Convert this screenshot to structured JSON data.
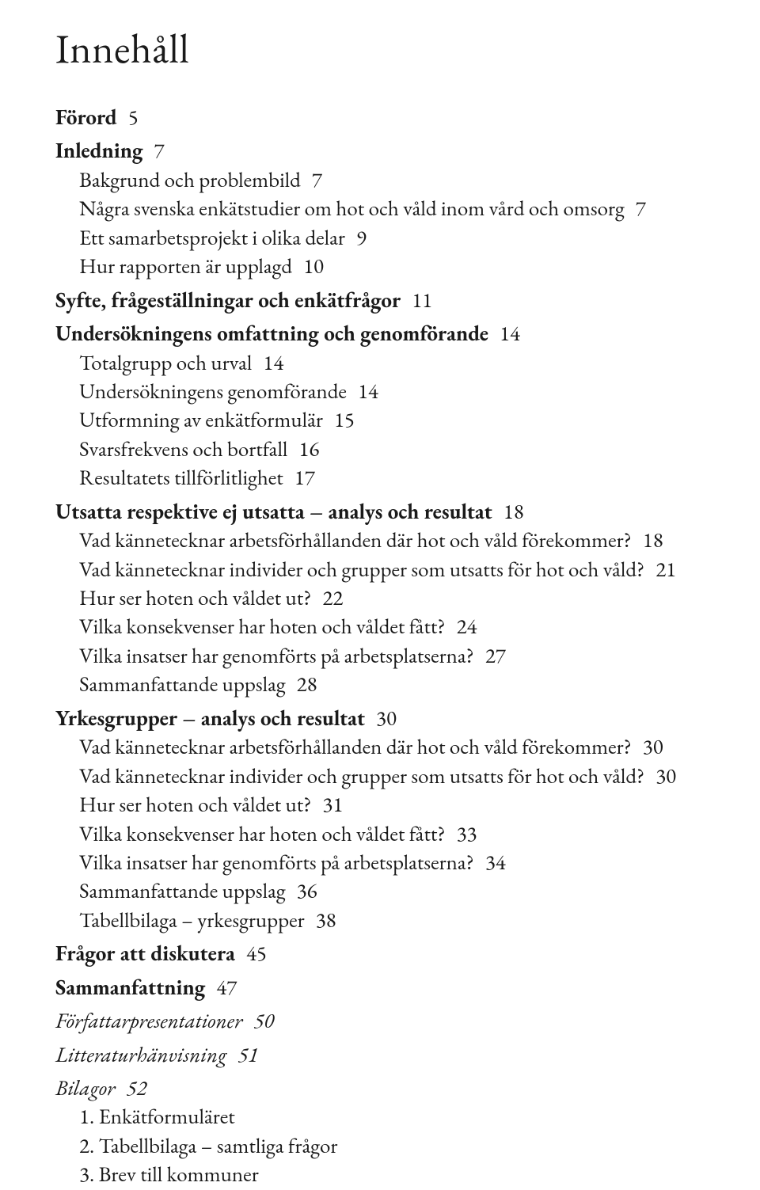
{
  "title": "Innehåll",
  "blocks": [
    {
      "type": "section",
      "text": "Förord",
      "page": "5"
    },
    {
      "type": "section",
      "text": "Inledning",
      "page": "7"
    },
    {
      "type": "sub",
      "text": "Bakgrund och problembild",
      "page": "7"
    },
    {
      "type": "sub",
      "text": "Några svenska enkätstudier om hot och våld inom vård och omsorg",
      "page": "7"
    },
    {
      "type": "sub",
      "text": "Ett samarbetsprojekt i olika delar",
      "page": "9"
    },
    {
      "type": "sub",
      "text": "Hur rapporten är upplagd",
      "page": "10"
    },
    {
      "type": "section",
      "text": "Syfte, frågeställningar och enkätfrågor",
      "page": "11"
    },
    {
      "type": "section",
      "text": "Undersökningens omfattning och genomförande",
      "page": "14"
    },
    {
      "type": "sub",
      "text": "Totalgrupp och urval",
      "page": "14"
    },
    {
      "type": "sub",
      "text": "Undersökningens genomförande",
      "page": "14"
    },
    {
      "type": "sub",
      "text": "Utformning av enkätformulär",
      "page": "15"
    },
    {
      "type": "sub",
      "text": "Svarsfrekvens och bortfall",
      "page": "16"
    },
    {
      "type": "sub",
      "text": "Resultatets tillförlitlighet",
      "page": "17"
    },
    {
      "type": "section",
      "text": "Utsatta respektive ej utsatta – analys och resultat",
      "page": "18"
    },
    {
      "type": "sub",
      "text": "Vad kännetecknar arbetsförhållanden där hot och våld förekommer?",
      "page": "18"
    },
    {
      "type": "sub",
      "text": "Vad kännetecknar individer och grupper som utsatts för hot och våld?",
      "page": "21"
    },
    {
      "type": "sub",
      "text": "Hur ser hoten och våldet ut?",
      "page": "22"
    },
    {
      "type": "sub",
      "text": "Vilka konsekvenser har hoten och våldet fått?",
      "page": "24"
    },
    {
      "type": "sub",
      "text": "Vilka insatser har genomförts på arbetsplatserna?",
      "page": "27"
    },
    {
      "type": "sub",
      "text": "Sammanfattande uppslag",
      "page": "28"
    },
    {
      "type": "section",
      "text": "Yrkesgrupper – analys och resultat",
      "page": "30"
    },
    {
      "type": "sub",
      "text": "Vad kännetecknar arbetsförhållanden där hot och våld förekommer?",
      "page": "30"
    },
    {
      "type": "sub",
      "text": "Vad kännetecknar individer och grupper som utsatts för hot och våld?",
      "page": "30"
    },
    {
      "type": "sub",
      "text": "Hur ser hoten och våldet ut?",
      "page": "31"
    },
    {
      "type": "sub",
      "text": "Vilka konsekvenser har hoten och våldet fått?",
      "page": "33"
    },
    {
      "type": "sub",
      "text": "Vilka insatser har genomförts på arbetsplatserna?",
      "page": "34"
    },
    {
      "type": "sub",
      "text": "Sammanfattande uppslag",
      "page": "36"
    },
    {
      "type": "sub",
      "text": "Tabellbilaga – yrkesgrupper",
      "page": "38"
    },
    {
      "type": "section",
      "text": "Frågor att diskutera",
      "page": "45"
    },
    {
      "type": "section",
      "text": "Sammanfattning",
      "page": "47"
    },
    {
      "type": "section-italic",
      "text": "Författarpresentationer",
      "page": "50"
    },
    {
      "type": "section-italic",
      "text": "Litteraturhänvisning",
      "page": "51"
    },
    {
      "type": "section-italic",
      "text": "Bilagor",
      "page": "52"
    },
    {
      "type": "sub",
      "text": "1. Enkätformuläret",
      "page": ""
    },
    {
      "type": "sub",
      "text": "2. Tabellbilaga – samtliga frågor",
      "page": ""
    },
    {
      "type": "sub",
      "text": "3. Brev till kommuner",
      "page": ""
    }
  ]
}
